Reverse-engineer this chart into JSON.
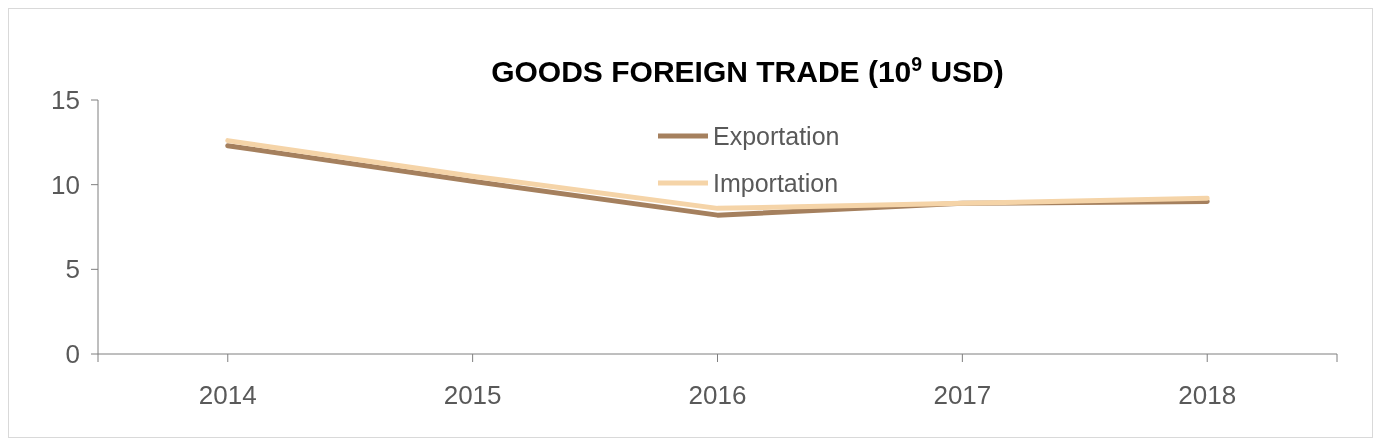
{
  "chart_data": {
    "type": "line",
    "title": "GOODS FOREIGN TRADE (10$^{9}$ USD)",
    "categories": [
      "2014",
      "2015",
      "2016",
      "2017",
      "2018"
    ],
    "series": [
      {
        "name": "Exportation",
        "color": "#a5805e",
        "values": [
          12.3,
          10.2,
          8.2,
          8.9,
          9.0
        ]
      },
      {
        "name": "Importation",
        "color": "#f5d4a8",
        "values": [
          12.6,
          10.5,
          8.6,
          8.9,
          9.2
        ]
      }
    ],
    "ylim": [
      0,
      15
    ],
    "yticks": [
      0,
      5,
      10,
      15
    ],
    "grid": false,
    "legend": "top",
    "marker": "none",
    "line_style": "solid"
  }
}
